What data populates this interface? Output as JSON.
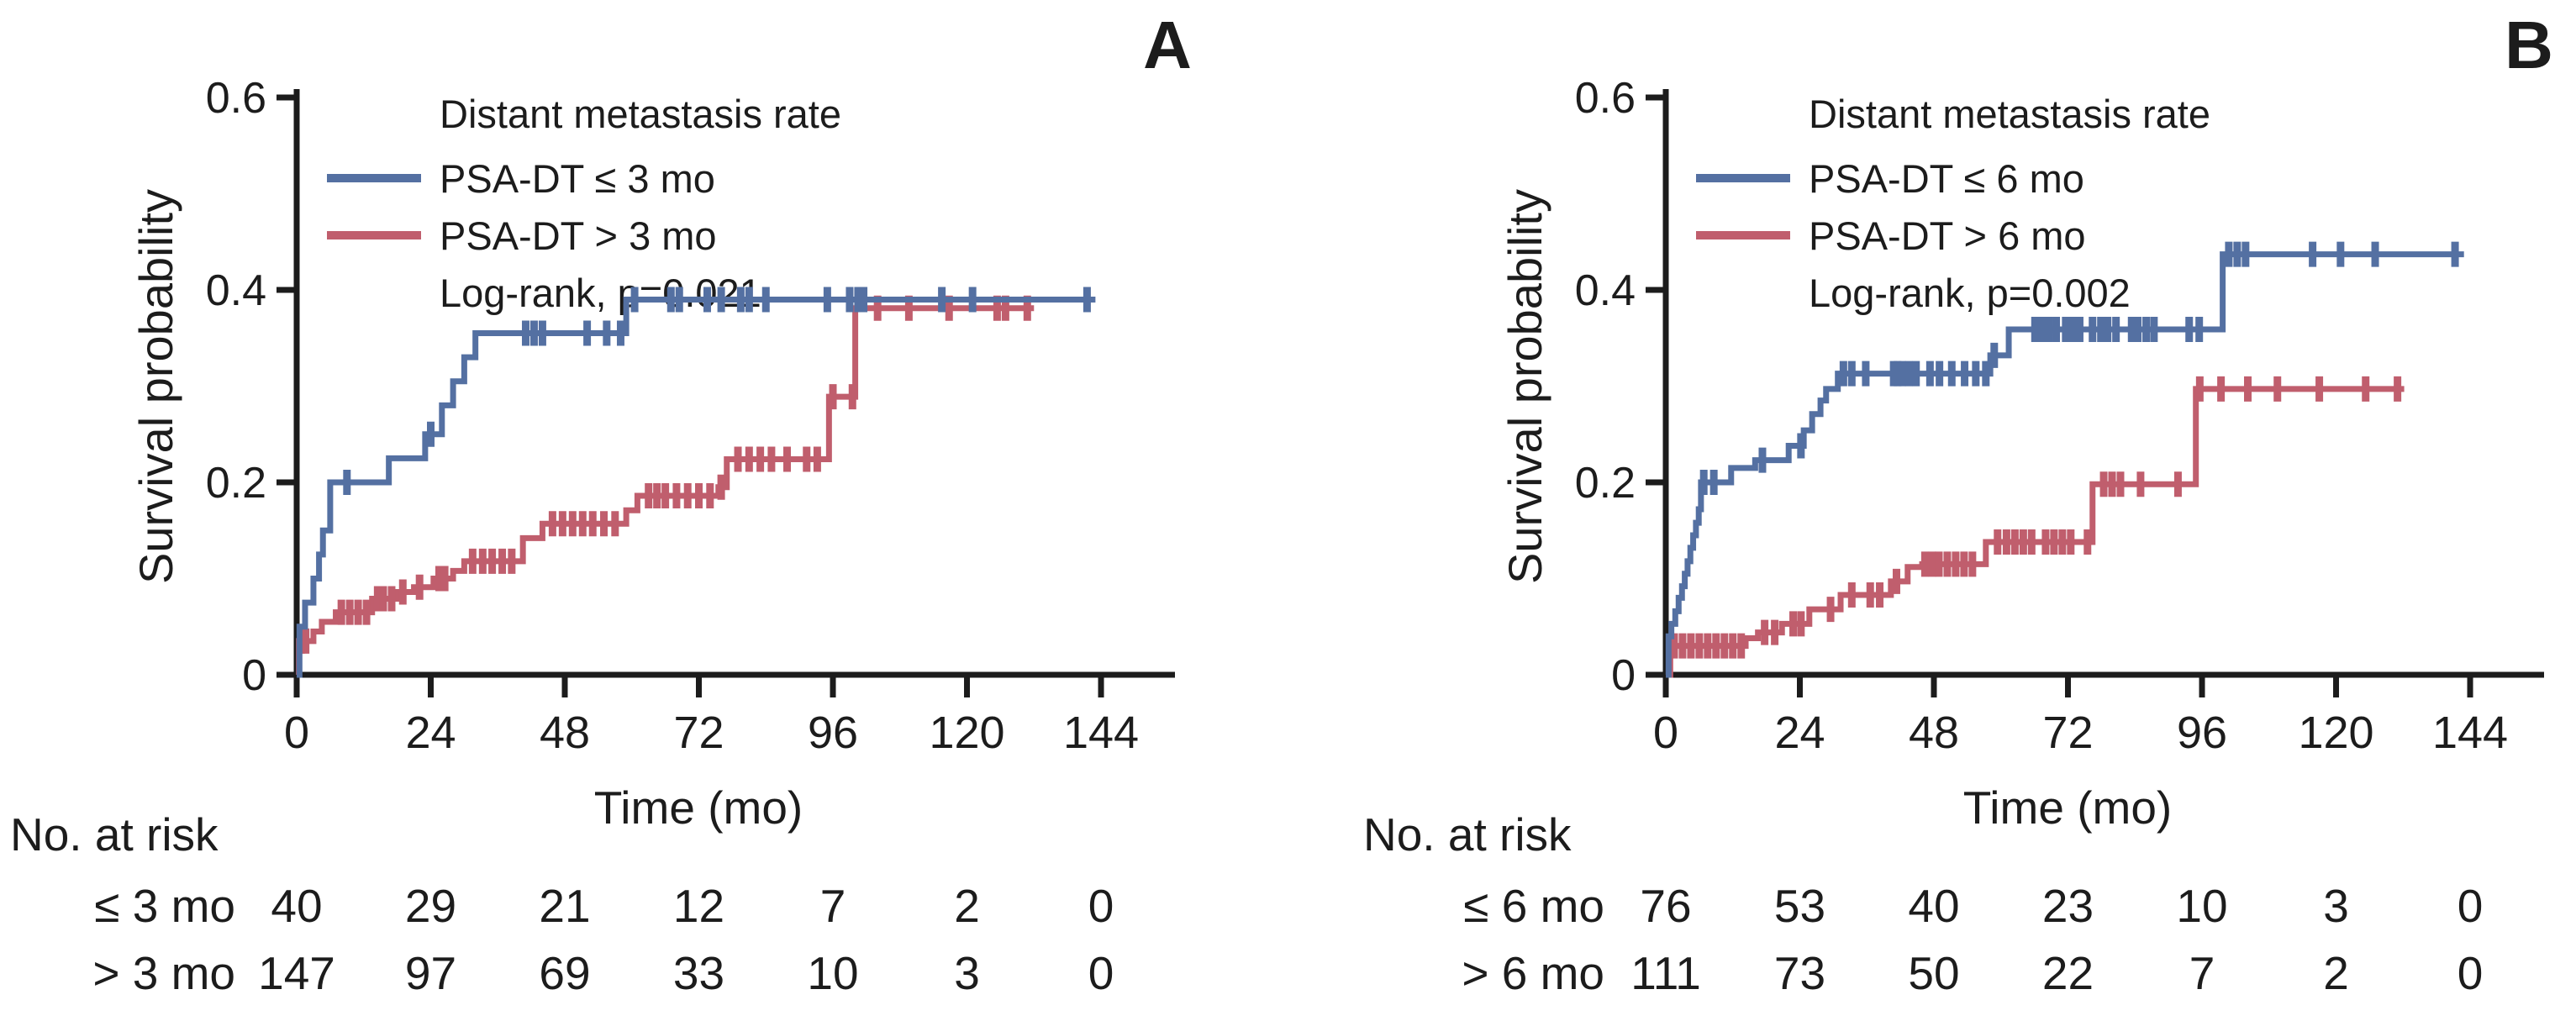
{
  "chart_data": [
    {
      "type": "line",
      "subtype": "kaplan-meier-step",
      "panel_label": "A",
      "legend_title": "Distant metastasis rate",
      "logrank_label": "Log-rank, p=0.021",
      "xlabel": "Time (mo)",
      "ylabel": "Survival probability",
      "xlim": [
        0,
        150
      ],
      "ylim": [
        0,
        0.62
      ],
      "xticks": [
        0,
        24,
        48,
        72,
        96,
        120,
        144
      ],
      "yticks": [
        0,
        0.2,
        0.4,
        0.6
      ],
      "ytick_labels": [
        "0",
        "0.2",
        "0.4",
        "0.6"
      ],
      "legend_position": "upper-left-inside",
      "grid": false,
      "series": [
        {
          "name": "PSA-DT ≤ 3 mo",
          "color": "#5470A2",
          "end_time": 143,
          "steps": [
            [
              0,
              0
            ],
            [
              0.5,
              0.05
            ],
            [
              1.5,
              0.075
            ],
            [
              3,
              0.1
            ],
            [
              4,
              0.125
            ],
            [
              4.7,
              0.15
            ],
            [
              6,
              0.2
            ],
            [
              16.5,
              0.225
            ],
            [
              23,
              0.25
            ],
            [
              26,
              0.28
            ],
            [
              28,
              0.305
            ],
            [
              30,
              0.33
            ],
            [
              32,
              0.355
            ],
            [
              59,
              0.39
            ]
          ],
          "censors": [
            [
              9,
              0.2
            ],
            [
              24,
              0.25
            ],
            [
              41,
              0.355
            ],
            [
              42.5,
              0.355
            ],
            [
              44,
              0.355
            ],
            [
              52,
              0.355
            ],
            [
              55.5,
              0.355
            ],
            [
              58,
              0.355
            ],
            [
              60.5,
              0.39
            ],
            [
              67,
              0.39
            ],
            [
              68.5,
              0.39
            ],
            [
              73.5,
              0.39
            ],
            [
              76,
              0.39
            ],
            [
              79.5,
              0.39
            ],
            [
              81,
              0.39
            ],
            [
              84,
              0.39
            ],
            [
              95,
              0.39
            ],
            [
              99,
              0.39
            ],
            [
              100.5,
              0.39
            ],
            [
              101.5,
              0.39
            ],
            [
              115.5,
              0.39
            ],
            [
              121,
              0.39
            ],
            [
              141.5,
              0.39
            ]
          ]
        },
        {
          "name": "PSA-DT > 3 mo",
          "color": "#C05E6D",
          "end_time": 132,
          "steps": [
            [
              0,
              0
            ],
            [
              0.4,
              0.035
            ],
            [
              3,
              0.045
            ],
            [
              4.5,
              0.055
            ],
            [
              7,
              0.065
            ],
            [
              13.5,
              0.079
            ],
            [
              18,
              0.086
            ],
            [
              21,
              0.091
            ],
            [
              24.5,
              0.1
            ],
            [
              28,
              0.108
            ],
            [
              30,
              0.118
            ],
            [
              40.5,
              0.142
            ],
            [
              44,
              0.157
            ],
            [
              59,
              0.171
            ],
            [
              61,
              0.186
            ],
            [
              75.5,
              0.195
            ],
            [
              77,
              0.224
            ],
            [
              95.3,
              0.289
            ],
            [
              100,
              0.381
            ]
          ],
          "censors": [
            [
              0.8,
              0.035
            ],
            [
              1.6,
              0.035
            ],
            [
              8,
              0.065
            ],
            [
              9.5,
              0.065
            ],
            [
              11,
              0.065
            ],
            [
              12.5,
              0.065
            ],
            [
              14.5,
              0.079
            ],
            [
              15.5,
              0.079
            ],
            [
              17,
              0.079
            ],
            [
              19,
              0.086
            ],
            [
              22,
              0.091
            ],
            [
              25.5,
              0.1
            ],
            [
              26.5,
              0.1
            ],
            [
              31.5,
              0.118
            ],
            [
              33.3,
              0.118
            ],
            [
              35,
              0.118
            ],
            [
              36.8,
              0.118
            ],
            [
              38.5,
              0.118
            ],
            [
              45.8,
              0.157
            ],
            [
              47.6,
              0.157
            ],
            [
              49.4,
              0.157
            ],
            [
              51.2,
              0.157
            ],
            [
              53,
              0.157
            ],
            [
              55,
              0.157
            ],
            [
              57,
              0.157
            ],
            [
              63,
              0.186
            ],
            [
              64.5,
              0.186
            ],
            [
              66,
              0.186
            ],
            [
              68,
              0.186
            ],
            [
              70,
              0.186
            ],
            [
              72,
              0.186
            ],
            [
              74,
              0.186
            ],
            [
              76,
              0.195
            ],
            [
              79,
              0.224
            ],
            [
              81,
              0.224
            ],
            [
              83,
              0.224
            ],
            [
              85,
              0.224
            ],
            [
              87.8,
              0.224
            ],
            [
              91.3,
              0.224
            ],
            [
              93.2,
              0.224
            ],
            [
              96,
              0.289
            ],
            [
              99.5,
              0.289
            ],
            [
              104,
              0.381
            ],
            [
              109.6,
              0.381
            ],
            [
              116.8,
              0.381
            ],
            [
              125.4,
              0.381
            ],
            [
              126.9,
              0.381
            ],
            [
              130.8,
              0.381
            ]
          ]
        }
      ],
      "risk_table": {
        "title": "No. at risk",
        "time_points": [
          0,
          24,
          48,
          72,
          96,
          120,
          144
        ],
        "rows": [
          {
            "label": "≤ 3 mo",
            "values": [
              "40",
              "29",
              "21",
              "12",
              "7",
              "2",
              "0"
            ]
          },
          {
            "label": "> 3 mo",
            "values": [
              "147",
              "97",
              "69",
              "33",
              "10",
              "3",
              "0"
            ]
          }
        ]
      }
    },
    {
      "type": "line",
      "subtype": "kaplan-meier-step",
      "panel_label": "B",
      "legend_title": "Distant metastasis rate",
      "logrank_label": "Log-rank, p=0.002",
      "xlabel": "Time (mo)",
      "ylabel": "Survival probability",
      "xlim": [
        0,
        150
      ],
      "ylim": [
        0,
        0.62
      ],
      "xticks": [
        0,
        24,
        48,
        72,
        96,
        120,
        144
      ],
      "yticks": [
        0,
        0.2,
        0.4,
        0.6
      ],
      "ytick_labels": [
        "0",
        "0.2",
        "0.4",
        "0.6"
      ],
      "legend_position": "upper-left-inside",
      "grid": false,
      "series": [
        {
          "name": "PSA-DT ≤ 6 mo",
          "color": "#5470A2",
          "end_time": 142.9,
          "steps": [
            [
              0,
              0
            ],
            [
              0.5,
              0.04
            ],
            [
              1,
              0.053
            ],
            [
              1.7,
              0.066
            ],
            [
              2.3,
              0.08
            ],
            [
              2.9,
              0.092
            ],
            [
              3.4,
              0.105
            ],
            [
              3.9,
              0.118
            ],
            [
              4.4,
              0.132
            ],
            [
              4.9,
              0.145
            ],
            [
              5.4,
              0.158
            ],
            [
              5.9,
              0.172
            ],
            [
              6.3,
              0.2
            ],
            [
              11.7,
              0.215
            ],
            [
              16,
              0.223
            ],
            [
              22,
              0.238
            ],
            [
              24.7,
              0.254
            ],
            [
              26.2,
              0.271
            ],
            [
              27.7,
              0.285
            ],
            [
              28.7,
              0.297
            ],
            [
              30.8,
              0.313
            ],
            [
              58.1,
              0.332
            ],
            [
              61.4,
              0.359
            ],
            [
              99.7,
              0.437
            ]
          ],
          "censors": [
            [
              6.8,
              0.2
            ],
            [
              8.6,
              0.2
            ],
            [
              17.3,
              0.223
            ],
            [
              24.2,
              0.238
            ],
            [
              31.8,
              0.313
            ],
            [
              33.3,
              0.313
            ],
            [
              35.8,
              0.313
            ],
            [
              40.8,
              0.313
            ],
            [
              41.5,
              0.313
            ],
            [
              42.3,
              0.313
            ],
            [
              43.5,
              0.313
            ],
            [
              44.8,
              0.313
            ],
            [
              47.3,
              0.313
            ],
            [
              49,
              0.313
            ],
            [
              51.2,
              0.313
            ],
            [
              53.5,
              0.313
            ],
            [
              55.5,
              0.313
            ],
            [
              57.3,
              0.313
            ],
            [
              58.8,
              0.332
            ],
            [
              66.1,
              0.359
            ],
            [
              67.4,
              0.359
            ],
            [
              68.6,
              0.359
            ],
            [
              69.9,
              0.359
            ],
            [
              71.6,
              0.359
            ],
            [
              72.9,
              0.359
            ],
            [
              74.1,
              0.359
            ],
            [
              76.4,
              0.359
            ],
            [
              77.9,
              0.359
            ],
            [
              79.1,
              0.359
            ],
            [
              80.6,
              0.359
            ],
            [
              83.4,
              0.359
            ],
            [
              84.5,
              0.359
            ],
            [
              86,
              0.359
            ],
            [
              87.4,
              0.359
            ],
            [
              93.7,
              0.359
            ],
            [
              95.5,
              0.359
            ],
            [
              100.8,
              0.437
            ],
            [
              102.3,
              0.437
            ],
            [
              103.8,
              0.437
            ],
            [
              115.8,
              0.437
            ],
            [
              120.8,
              0.437
            ],
            [
              127,
              0.437
            ],
            [
              141.3,
              0.437
            ]
          ]
        },
        {
          "name": "PSA-DT > 6 mo",
          "color": "#C05E6D",
          "end_time": 132.2,
          "steps": [
            [
              0,
              0
            ],
            [
              0.8,
              0.03
            ],
            [
              14.3,
              0.038
            ],
            [
              16.5,
              0.044
            ],
            [
              20.8,
              0.053
            ],
            [
              25.7,
              0.068
            ],
            [
              31.3,
              0.083
            ],
            [
              40.3,
              0.097
            ],
            [
              43.3,
              0.112
            ],
            [
              45.9,
              0.115
            ],
            [
              57.3,
              0.138
            ],
            [
              76.4,
              0.198
            ],
            [
              94.9,
              0.297
            ]
          ],
          "censors": [
            [
              1.5,
              0.03
            ],
            [
              3,
              0.03
            ],
            [
              4.5,
              0.03
            ],
            [
              6,
              0.03
            ],
            [
              7.5,
              0.03
            ],
            [
              9,
              0.03
            ],
            [
              10.5,
              0.03
            ],
            [
              12,
              0.03
            ],
            [
              13.5,
              0.03
            ],
            [
              17.7,
              0.044
            ],
            [
              19.5,
              0.044
            ],
            [
              22.8,
              0.053
            ],
            [
              24.2,
              0.053
            ],
            [
              29.5,
              0.068
            ],
            [
              33.3,
              0.083
            ],
            [
              36.6,
              0.083
            ],
            [
              38.3,
              0.083
            ],
            [
              41.3,
              0.097
            ],
            [
              46.4,
              0.115
            ],
            [
              47.7,
              0.115
            ],
            [
              48.9,
              0.115
            ],
            [
              50.4,
              0.115
            ],
            [
              51.9,
              0.115
            ],
            [
              53.4,
              0.115
            ],
            [
              54.9,
              0.115
            ],
            [
              59.4,
              0.138
            ],
            [
              61,
              0.138
            ],
            [
              62.5,
              0.138
            ],
            [
              64,
              0.138
            ],
            [
              65.5,
              0.138
            ],
            [
              68,
              0.138
            ],
            [
              69.5,
              0.138
            ],
            [
              71,
              0.138
            ],
            [
              72.5,
              0.138
            ],
            [
              75.5,
              0.138
            ],
            [
              78.4,
              0.198
            ],
            [
              79.9,
              0.198
            ],
            [
              81.4,
              0.198
            ],
            [
              85,
              0.198
            ],
            [
              91.7,
              0.198
            ],
            [
              95.6,
              0.297
            ],
            [
              99.4,
              0.297
            ],
            [
              104.2,
              0.297
            ],
            [
              109.5,
              0.297
            ],
            [
              117,
              0.297
            ],
            [
              125.3,
              0.297
            ],
            [
              131,
              0.297
            ]
          ]
        }
      ],
      "risk_table": {
        "title": "No. at risk",
        "time_points": [
          0,
          24,
          48,
          72,
          96,
          120,
          144
        ],
        "rows": [
          {
            "label": "≤ 6 mo",
            "values": [
              "76",
              "53",
              "40",
              "23",
              "10",
              "3",
              "0"
            ]
          },
          {
            "label": "> 6 mo",
            "values": [
              "111",
              "73",
              "50",
              "22",
              "7",
              "2",
              "0"
            ]
          }
        ]
      }
    }
  ],
  "colors": {
    "axis": "#1c1c1c",
    "series_blue": "#5470A2",
    "series_red": "#C05E6D",
    "background": "#ffffff"
  }
}
